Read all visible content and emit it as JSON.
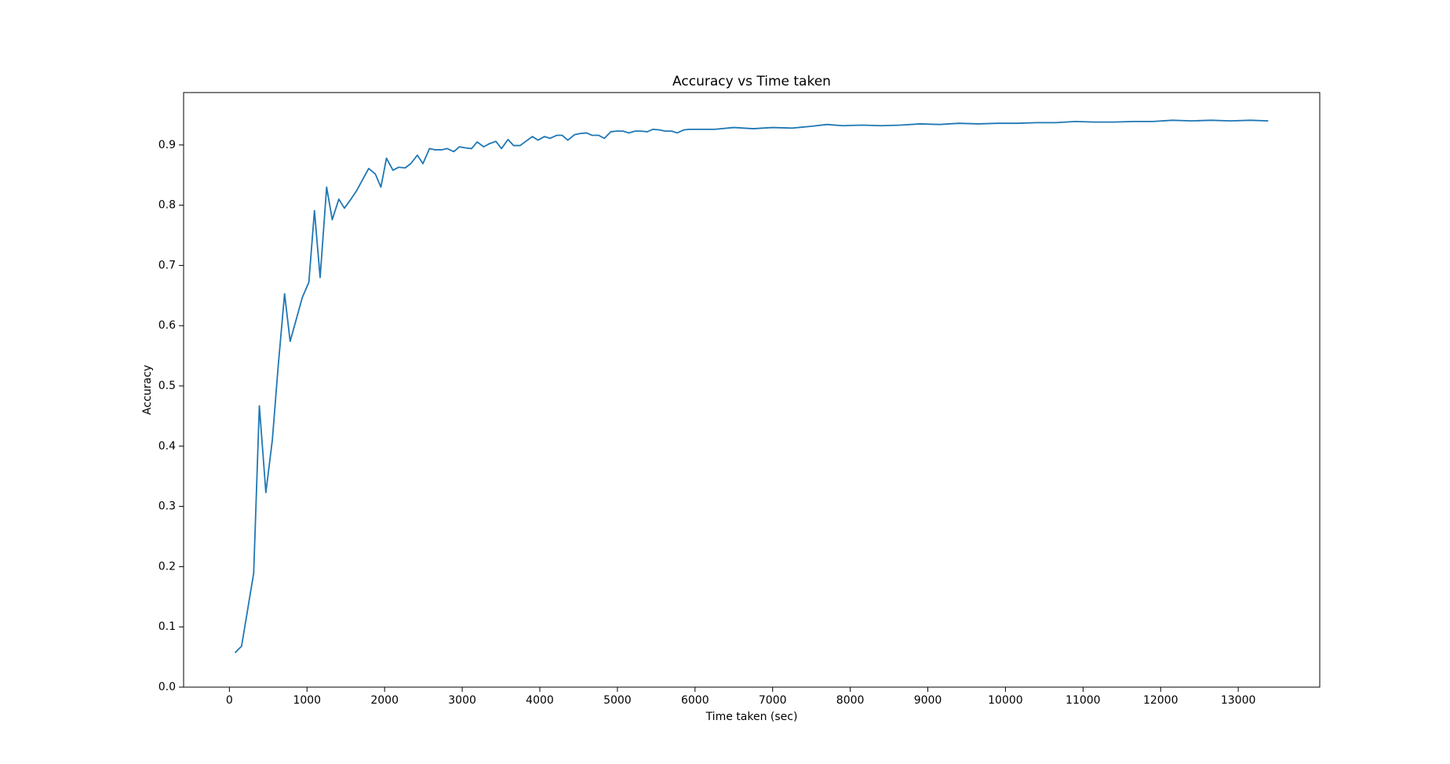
{
  "chart_data": {
    "type": "line",
    "title": "Accuracy vs Time taken",
    "x_label": "Time taken (sec)",
    "y_label": "Accuracy",
    "color": "#1f77b4",
    "x": [
      72,
      157,
      313,
      386,
      470,
      554,
      627,
      711,
      783,
      867,
      940,
      1024,
      1096,
      1169,
      1253,
      1325,
      1410,
      1482,
      1566,
      1639,
      1723,
      1795,
      1880,
      1952,
      2024,
      2108,
      2181,
      2265,
      2337,
      2422,
      2494,
      2578,
      2651,
      2735,
      2807,
      2892,
      2964,
      3048,
      3120,
      3193,
      3277,
      3349,
      3434,
      3506,
      3590,
      3663,
      3747,
      3819,
      3904,
      3976,
      4060,
      4133,
      4217,
      4289,
      4361,
      4446,
      4518,
      4602,
      4675,
      4759,
      4831,
      4916,
      4988,
      5072,
      5145,
      5229,
      5301,
      5386,
      5458,
      5542,
      5614,
      5699,
      5771,
      5855,
      5928,
      6000,
      6250,
      6500,
      6750,
      7000,
      7250,
      7500,
      7700,
      7900,
      8150,
      8400,
      8650,
      8900,
      9150,
      9400,
      9650,
      9900,
      10150,
      10400,
      10650,
      10900,
      11150,
      11400,
      11650,
      11900,
      12150,
      12400,
      12650,
      12900,
      13150,
      13386
    ],
    "values": [
      0.057,
      0.068,
      0.189,
      0.467,
      0.323,
      0.411,
      0.53,
      0.653,
      0.574,
      0.613,
      0.647,
      0.672,
      0.791,
      0.68,
      0.83,
      0.776,
      0.81,
      0.795,
      0.81,
      0.824,
      0.844,
      0.861,
      0.852,
      0.83,
      0.878,
      0.858,
      0.863,
      0.862,
      0.869,
      0.883,
      0.869,
      0.894,
      0.892,
      0.892,
      0.894,
      0.889,
      0.897,
      0.895,
      0.894,
      0.905,
      0.897,
      0.902,
      0.906,
      0.894,
      0.909,
      0.899,
      0.899,
      0.906,
      0.914,
      0.908,
      0.914,
      0.911,
      0.916,
      0.916,
      0.908,
      0.917,
      0.919,
      0.92,
      0.916,
      0.916,
      0.911,
      0.922,
      0.923,
      0.923,
      0.92,
      0.923,
      0.923,
      0.922,
      0.926,
      0.925,
      0.923,
      0.923,
      0.92,
      0.925,
      0.926,
      0.926,
      0.926,
      0.929,
      0.927,
      0.929,
      0.928,
      0.931,
      0.934,
      0.932,
      0.933,
      0.932,
      0.933,
      0.935,
      0.934,
      0.936,
      0.935,
      0.936,
      0.936,
      0.937,
      0.937,
      0.939,
      0.938,
      0.938,
      0.939,
      0.939,
      0.941,
      0.94,
      0.941,
      0.94,
      0.941,
      0.94
    ],
    "xlim": [
      -590,
      14050
    ],
    "ylim": [
      0,
      0.987
    ],
    "xticks": [
      0,
      1000,
      2000,
      3000,
      4000,
      5000,
      6000,
      7000,
      8000,
      9000,
      10000,
      11000,
      12000,
      13000
    ],
    "yticks": [
      {
        "value": 0,
        "label": "0.0"
      },
      0.1,
      0.2,
      0.3,
      0.4,
      0.5,
      0.6,
      0.7,
      0.8,
      0.9
    ]
  }
}
